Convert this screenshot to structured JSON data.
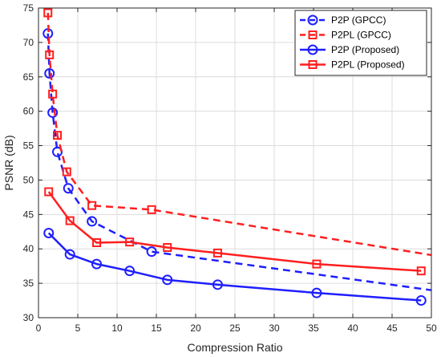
{
  "chart_data": {
    "type": "line",
    "title": "",
    "xlabel": "Compression Ratio",
    "ylabel": "PSNR (dB)",
    "xlim": [
      0,
      50
    ],
    "ylim": [
      30,
      75
    ],
    "xticks": [
      0,
      5,
      10,
      15,
      20,
      25,
      30,
      35,
      40,
      45,
      50
    ],
    "yticks": [
      30,
      35,
      40,
      45,
      50,
      55,
      60,
      65,
      70,
      75
    ],
    "grid": true,
    "legend_position": "top-right",
    "series": [
      {
        "name": "P2P (GPCC)",
        "color": "#1f1fff",
        "line_style": "dashed",
        "marker": "circle",
        "x": [
          1.2,
          1.4,
          1.8,
          2.4,
          3.8,
          6.8,
          14.4
        ],
        "y": [
          71.3,
          65.5,
          59.8,
          54.1,
          48.8,
          44.0,
          39.6
        ],
        "line_end": [
          50,
          34.0
        ]
      },
      {
        "name": "P2PL (GPCC)",
        "color": "#ff1f1f",
        "line_style": "dashed",
        "marker": "square",
        "x": [
          1.2,
          1.4,
          1.8,
          2.4,
          3.6,
          6.8,
          14.4
        ],
        "y": [
          74.3,
          68.2,
          62.5,
          56.5,
          51.2,
          46.3,
          45.7
        ],
        "line_end": [
          50,
          39.1
        ]
      },
      {
        "name": "P2P (Proposed)",
        "color": "#1f1fff",
        "line_style": "solid",
        "marker": "circle",
        "x": [
          1.3,
          4.0,
          7.4,
          11.6,
          16.4,
          22.8,
          35.4,
          48.7
        ],
        "y": [
          42.3,
          39.2,
          37.8,
          36.8,
          35.5,
          34.8,
          33.6,
          32.5
        ]
      },
      {
        "name": "P2PL (Proposed)",
        "color": "#ff1f1f",
        "line_style": "solid",
        "marker": "square",
        "x": [
          1.3,
          4.0,
          7.4,
          11.6,
          16.4,
          22.8,
          35.4,
          48.7
        ],
        "y": [
          48.3,
          44.1,
          40.9,
          41.0,
          40.2,
          39.4,
          37.8,
          36.8
        ]
      }
    ]
  }
}
